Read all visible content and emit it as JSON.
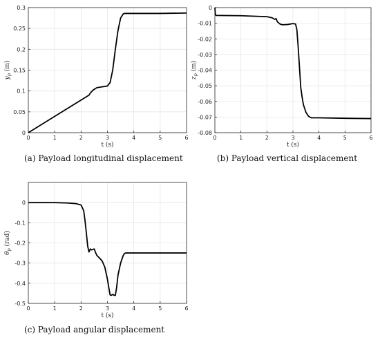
{
  "chart_data": [
    {
      "type": "line",
      "caption": "(a)  Payload longitudinal displacement",
      "xlabel": "t (s)",
      "ylabel": "y_p (m)",
      "ylabel_main": "y",
      "ylabel_sub": "p",
      "ylabel_unit": " (m)",
      "xlim": [
        0,
        6
      ],
      "ylim": [
        0,
        0.3
      ],
      "xticks": [
        0,
        1,
        2,
        3,
        4,
        5,
        6
      ],
      "yticks": [
        0,
        0.05,
        0.1,
        0.15,
        0.2,
        0.25,
        0.3
      ],
      "ytick_labels": [
        "0",
        "0.05",
        "0.1",
        "0.15",
        "0.2",
        "0.25",
        "0.3"
      ],
      "grid": true,
      "series": [
        {
          "x": [
            0,
            2.3,
            2.35,
            2.45,
            2.6,
            2.8,
            3.0,
            3.1,
            3.2,
            3.3,
            3.4,
            3.5,
            3.6,
            3.65,
            4.0,
            5.0,
            6.0
          ],
          "y": [
            0,
            0.09,
            0.095,
            0.102,
            0.108,
            0.11,
            0.112,
            0.12,
            0.15,
            0.2,
            0.245,
            0.275,
            0.285,
            0.286,
            0.286,
            0.286,
            0.287
          ]
        }
      ]
    },
    {
      "type": "line",
      "caption": "(b)  Payload vertical displacement",
      "xlabel": "t (s)",
      "ylabel": "z_p (m)",
      "ylabel_main": "z",
      "ylabel_sub": "p",
      "ylabel_unit": " (m)",
      "xlim": [
        0,
        6
      ],
      "ylim": [
        -0.08,
        0
      ],
      "xticks": [
        0,
        1,
        2,
        3,
        4,
        5,
        6
      ],
      "yticks": [
        -0.08,
        -0.07,
        -0.06,
        -0.05,
        -0.04,
        -0.03,
        -0.02,
        -0.01,
        0
      ],
      "ytick_labels": [
        "-0.08",
        "-0.07",
        "-0.06",
        "-0.05",
        "-0.04",
        "-0.03",
        "-0.02",
        "-0.01",
        "0"
      ],
      "grid": true,
      "series": [
        {
          "x": [
            0,
            0.02,
            0.05,
            1.0,
            2.0,
            2.2,
            2.3,
            2.35,
            2.4,
            2.5,
            2.6,
            2.8,
            3.0,
            3.1,
            3.15,
            3.2,
            3.25,
            3.3,
            3.35,
            3.4,
            3.5,
            3.6,
            3.7,
            4.0,
            5.0,
            6.0
          ],
          "y": [
            0,
            -0.0045,
            -0.005,
            -0.0052,
            -0.0058,
            -0.0065,
            -0.0075,
            -0.007,
            -0.009,
            -0.0105,
            -0.011,
            -0.0108,
            -0.0102,
            -0.0105,
            -0.014,
            -0.025,
            -0.038,
            -0.051,
            -0.057,
            -0.062,
            -0.067,
            -0.0695,
            -0.0705,
            -0.0705,
            -0.0708,
            -0.071
          ]
        }
      ]
    },
    {
      "type": "line",
      "caption": "(c)  Payload angular displacement",
      "xlabel": "t (s)",
      "ylabel": "θ_p (rad)",
      "ylabel_main": "θ",
      "ylabel_sub": "p",
      "ylabel_unit": " (rad)",
      "xlim": [
        0,
        6
      ],
      "ylim": [
        -0.5,
        0.1
      ],
      "xticks": [
        0,
        1,
        2,
        3,
        4,
        5,
        6
      ],
      "yticks": [
        -0.5,
        -0.4,
        -0.3,
        -0.2,
        -0.1,
        0
      ],
      "ytick_labels": [
        "-0.5",
        "-0.4",
        "-0.3",
        "-0.2",
        "-0.1",
        "0"
      ],
      "grid": true,
      "series": [
        {
          "x": [
            0,
            1.0,
            1.5,
            1.8,
            2.0,
            2.1,
            2.15,
            2.2,
            2.25,
            2.3,
            2.35,
            2.4,
            2.45,
            2.5,
            2.55,
            2.6,
            2.7,
            2.8,
            2.9,
            3.0,
            3.05,
            3.1,
            3.15,
            3.2,
            3.25,
            3.3,
            3.35,
            3.4,
            3.5,
            3.6,
            3.65,
            3.7,
            4.0,
            5.0,
            6.0
          ],
          "y": [
            0,
            0,
            -0.002,
            -0.005,
            -0.012,
            -0.04,
            -0.09,
            -0.15,
            -0.215,
            -0.245,
            -0.23,
            -0.235,
            -0.232,
            -0.23,
            -0.248,
            -0.262,
            -0.275,
            -0.29,
            -0.32,
            -0.38,
            -0.42,
            -0.458,
            -0.46,
            -0.455,
            -0.46,
            -0.46,
            -0.42,
            -0.36,
            -0.3,
            -0.262,
            -0.252,
            -0.25,
            -0.25,
            -0.25,
            -0.25
          ]
        }
      ]
    }
  ]
}
